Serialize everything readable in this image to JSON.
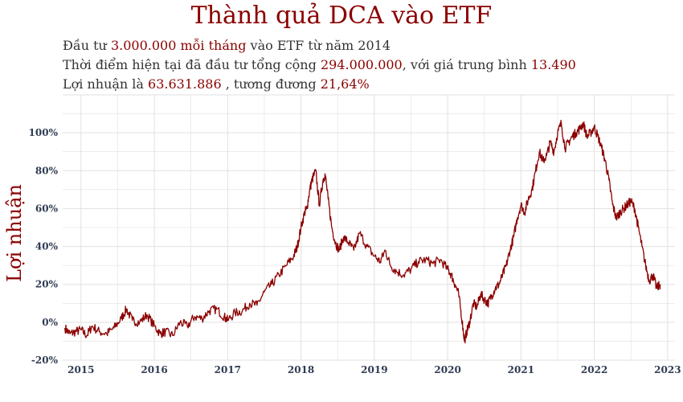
{
  "title": "Thành quả DCA vào ETF",
  "info": {
    "line1": {
      "a": "Đầu tư ",
      "amount": "3.000.000 mỗi tháng",
      "b": " vào ETF từ năm 2014"
    },
    "line2": {
      "a": "Thời điểm hiện tại đã đầu tư tổng cộng ",
      "total": "294.000.000",
      "b": ",  với giá trung bình ",
      "avg": "13.490"
    },
    "line3": {
      "a": "Lợi nhuận là ",
      "profit": "63.631.886",
      "b": " ,  tương đương ",
      "pct": "21,64%"
    }
  },
  "colors": {
    "accent": "#8b0000",
    "line": "#8b0000",
    "grid": "#e0e0e0",
    "tick": "#2f3b52"
  },
  "chart_data": {
    "type": "line",
    "title": "Thành quả DCA vào ETF",
    "ylabel": "Lợi nhuận",
    "xlabel": "",
    "grid": true,
    "xlim": [
      2014.75,
      2023.1
    ],
    "ylim": [
      -20,
      120
    ],
    "xticks": [
      2015,
      2016,
      2017,
      2018,
      2019,
      2020,
      2021,
      2022,
      2023
    ],
    "xtick_labels": [
      "2015",
      "2016",
      "2017",
      "2018",
      "2019",
      "2020",
      "2021",
      "2022",
      "2023"
    ],
    "yticks": [
      -20,
      0,
      20,
      40,
      60,
      80,
      100
    ],
    "ytick_labels": [
      "-20%",
      "0%",
      "20%",
      "40%",
      "60%",
      "80%",
      "100%"
    ],
    "series": [
      {
        "x": [
          2014.78,
          2014.85,
          2014.92,
          2015.0,
          2015.08,
          2015.15,
          2015.25,
          2015.35,
          2015.45,
          2015.55,
          2015.62,
          2015.7,
          2015.8,
          2015.9,
          2016.0,
          2016.08,
          2016.15,
          2016.25,
          2016.35,
          2016.45,
          2016.55,
          2016.65,
          2016.75,
          2016.85,
          2016.95,
          2017.0,
          2017.1,
          2017.2,
          2017.3,
          2017.4,
          2017.5,
          2017.6,
          2017.7,
          2017.8,
          2017.9,
          2017.95,
          2018.0,
          2018.05,
          2018.08,
          2018.12,
          2018.15,
          2018.2,
          2018.25,
          2018.3,
          2018.33,
          2018.37,
          2018.42,
          2018.47,
          2018.52,
          2018.58,
          2018.65,
          2018.72,
          2018.8,
          2018.9,
          2019.0,
          2019.08,
          2019.15,
          2019.22,
          2019.3,
          2019.4,
          2019.5,
          2019.6,
          2019.7,
          2019.8,
          2019.9,
          2020.0,
          2020.05,
          2020.1,
          2020.15,
          2020.2,
          2020.23,
          2020.26,
          2020.3,
          2020.35,
          2020.4,
          2020.45,
          2020.5,
          2020.55,
          2020.6,
          2020.65,
          2020.7,
          2020.75,
          2020.8,
          2020.85,
          2020.9,
          2020.95,
          2021.0,
          2021.05,
          2021.1,
          2021.15,
          2021.2,
          2021.25,
          2021.3,
          2021.35,
          2021.4,
          2021.45,
          2021.5,
          2021.55,
          2021.6,
          2021.65,
          2021.7,
          2021.75,
          2021.8,
          2021.85,
          2021.9,
          2021.95,
          2022.0,
          2022.05,
          2022.1,
          2022.15,
          2022.2,
          2022.25,
          2022.3,
          2022.35,
          2022.4,
          2022.45,
          2022.5,
          2022.55,
          2022.6,
          2022.65,
          2022.7,
          2022.75,
          2022.8,
          2022.85,
          2022.9
        ],
        "y": [
          -3,
          -6,
          -5,
          -4,
          -7,
          -2,
          -5,
          -6,
          -3,
          2,
          7,
          1,
          0,
          4,
          -2,
          -6,
          -5,
          -7,
          0,
          -2,
          3,
          2,
          6,
          7,
          3,
          1,
          5,
          6,
          10,
          9,
          16,
          20,
          25,
          30,
          35,
          40,
          50,
          58,
          60,
          70,
          75,
          80,
          62,
          75,
          78,
          65,
          50,
          42,
          38,
          45,
          42,
          38,
          47,
          40,
          35,
          32,
          38,
          30,
          27,
          25,
          28,
          32,
          33,
          31,
          33,
          28,
          25,
          20,
          15,
          0,
          -10,
          -5,
          0,
          10,
          8,
          15,
          12,
          10,
          14,
          18,
          20,
          25,
          30,
          38,
          45,
          55,
          62,
          58,
          65,
          70,
          80,
          90,
          85,
          88,
          95,
          90,
          100,
          105,
          92,
          95,
          98,
          100,
          102,
          105,
          98,
          100,
          103,
          98,
          92,
          85,
          75,
          62,
          55,
          58,
          60,
          62,
          64,
          60,
          50,
          40,
          30,
          22,
          25,
          18,
          20
        ]
      }
    ]
  }
}
